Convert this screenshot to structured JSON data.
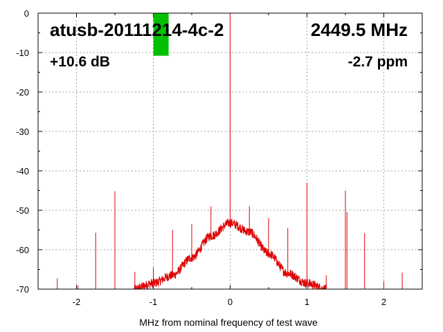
{
  "chart_data": {
    "type": "line",
    "title": "atusb-20111214-4c-2",
    "frequency": "2449.5 MHz",
    "gain": "+10.6 dB",
    "offset": "-2.7 ppm",
    "xlabel": "MHz from nominal frequency of test wave",
    "ylabel": "",
    "xlim": [
      -2.5,
      2.5
    ],
    "ylim": [
      -70,
      0
    ],
    "x_ticks": [
      -2,
      -1,
      0,
      1,
      2
    ],
    "x_tick_labels": [
      "-2",
      "-1",
      "0",
      "1",
      "2"
    ],
    "y_ticks": [
      0,
      -10,
      -20,
      -30,
      -40,
      -50,
      -60,
      -70
    ],
    "y_tick_labels": [
      "0",
      "-10",
      "-20",
      "-30",
      "-40",
      "-50",
      "-60",
      "-70"
    ],
    "grid": true,
    "series_color": "#dd0000",
    "marker_bar": {
      "x": -0.9,
      "y_top": 0,
      "y_bottom": -10.8,
      "color": "#00c000"
    },
    "noise_floor_envelope": [
      {
        "x": -1.25,
        "y": -70.0
      },
      {
        "x": -1.0,
        "y": -68.5
      },
      {
        "x": -0.75,
        "y": -66.5
      },
      {
        "x": -0.5,
        "y": -62.0
      },
      {
        "x": -0.25,
        "y": -56.5
      },
      {
        "x": 0.0,
        "y": -53.2
      },
      {
        "x": 0.25,
        "y": -55.5
      },
      {
        "x": 0.5,
        "y": -61.0
      },
      {
        "x": 0.75,
        "y": -66.0
      },
      {
        "x": 1.0,
        "y": -68.5
      },
      {
        "x": 1.25,
        "y": -70.0
      }
    ],
    "spurs": [
      {
        "x": -2.25,
        "y": -67.3
      },
      {
        "x": -1.98,
        "y": -69.0
      },
      {
        "x": -1.75,
        "y": -55.7
      },
      {
        "x": -1.5,
        "y": -45.2
      },
      {
        "x": -1.24,
        "y": -65.6
      },
      {
        "x": -1.0,
        "y": -64.5
      },
      {
        "x": -0.75,
        "y": -55.0
      },
      {
        "x": -0.5,
        "y": -53.5
      },
      {
        "x": -0.25,
        "y": -49.0
      },
      {
        "x": 0.0,
        "y": 0.0
      },
      {
        "x": 0.25,
        "y": -49.0
      },
      {
        "x": 0.5,
        "y": -52.0
      },
      {
        "x": 0.75,
        "y": -54.5
      },
      {
        "x": 1.0,
        "y": -43.0
      },
      {
        "x": 1.25,
        "y": -66.5
      },
      {
        "x": 1.5,
        "y": -45.0
      },
      {
        "x": 1.52,
        "y": -50.5
      },
      {
        "x": 1.75,
        "y": -55.8
      },
      {
        "x": 2.0,
        "y": -68.0
      },
      {
        "x": 2.24,
        "y": -65.8
      }
    ]
  }
}
